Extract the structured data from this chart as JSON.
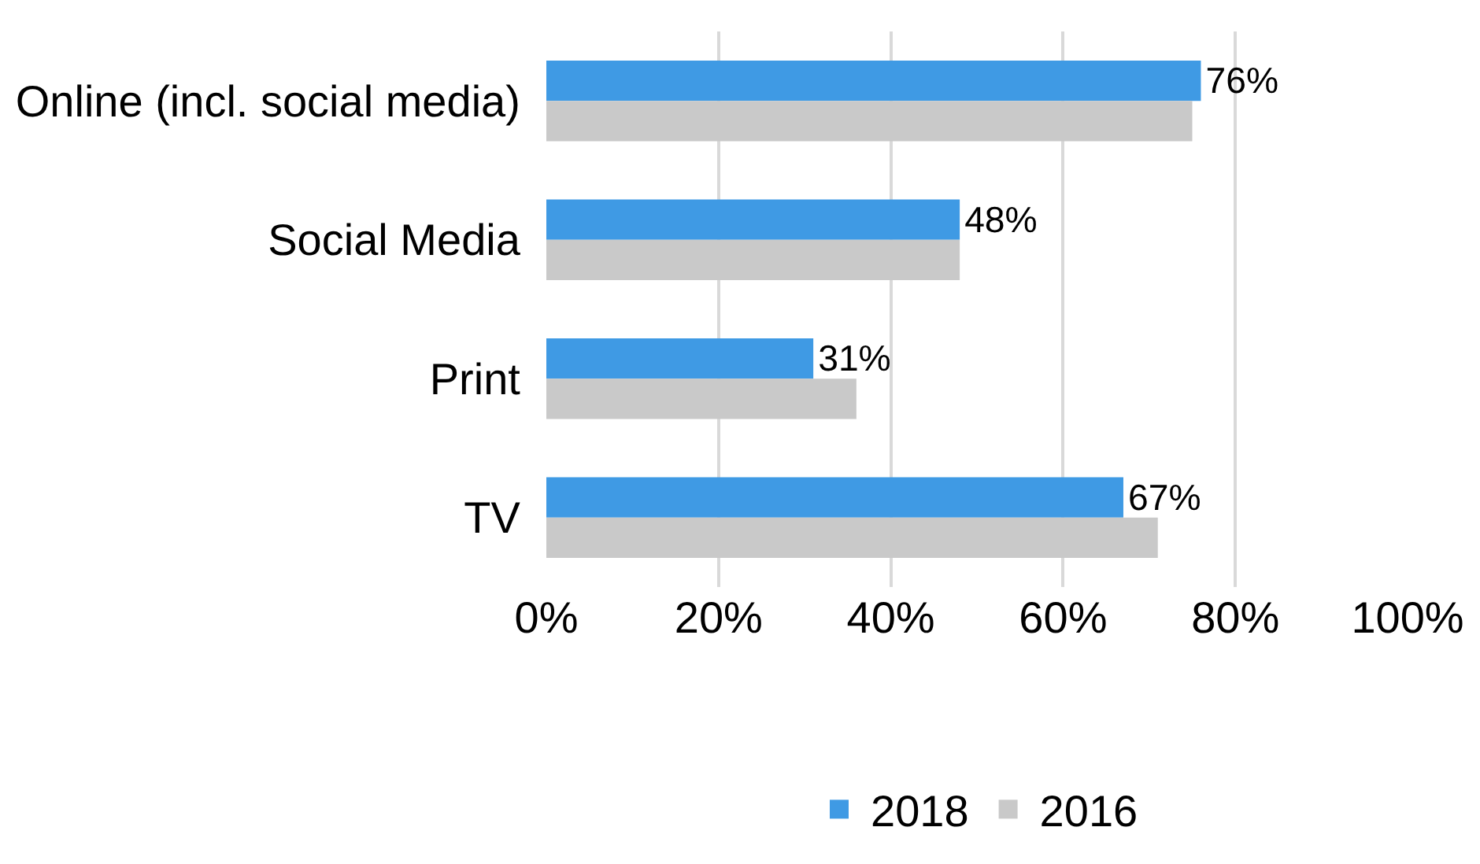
{
  "chart_data": {
    "type": "bar",
    "orientation": "horizontal",
    "categories": [
      "Online (incl. social media)",
      "Social Media",
      "Print",
      "TV"
    ],
    "series": [
      {
        "name": "2018",
        "color": "#3f9ae4",
        "values": [
          76,
          48,
          31,
          67
        ],
        "value_labels": [
          "76%",
          "48%",
          "31%",
          "67%"
        ]
      },
      {
        "name": "2016",
        "color": "#c9c9c9",
        "values": [
          75,
          48,
          36,
          71
        ]
      }
    ],
    "xlim": [
      0,
      100
    ],
    "xticks": [
      {
        "value": 0,
        "label": "0%"
      },
      {
        "value": 20,
        "label": "20%"
      },
      {
        "value": 40,
        "label": "40%"
      },
      {
        "value": 60,
        "label": "60%"
      },
      {
        "value": 80,
        "label": "80%"
      },
      {
        "value": 100,
        "label": "100%"
      }
    ],
    "grid": "x",
    "legend": "bottom"
  }
}
